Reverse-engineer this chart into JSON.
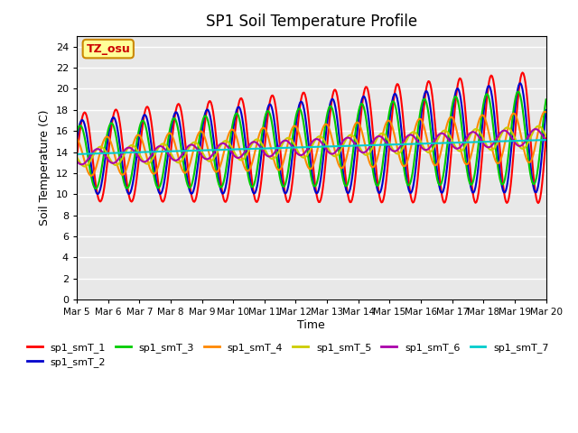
{
  "title": "SP1 Soil Temperature Profile",
  "xlabel": "Time",
  "ylabel": "Soil Temperature (C)",
  "ylim": [
    0,
    25
  ],
  "yticks": [
    0,
    2,
    4,
    6,
    8,
    10,
    12,
    14,
    16,
    18,
    20,
    22,
    24
  ],
  "x_tick_positions": [
    0,
    1,
    2,
    3,
    4,
    5,
    6,
    7,
    8,
    9,
    10,
    11,
    12,
    13,
    14,
    15
  ],
  "x_labels": [
    "Mar 5",
    "Mar 6",
    "Mar 7",
    "Mar 8",
    "Mar 9",
    "Mar 10",
    "Mar 11",
    "Mar 12",
    "Mar 13",
    "Mar 14",
    "Mar 15",
    "Mar 16",
    "Mar 17",
    "Mar 18",
    "Mar 19",
    "Mar 20"
  ],
  "annotation": "TZ_osu",
  "annotation_color": "#cc0000",
  "annotation_bg": "#ffff99",
  "annotation_border": "#cc8800",
  "series_colors": [
    "#ff0000",
    "#0000cc",
    "#00cc00",
    "#ff8800",
    "#cccc00",
    "#aa00aa",
    "#00cccc"
  ],
  "series_labels": [
    "sp1_smT_1",
    "sp1_smT_2",
    "sp1_smT_3",
    "sp1_smT_4",
    "sp1_smT_5",
    "sp1_smT_6",
    "sp1_smT_7"
  ],
  "bg_color": "#e8e8e8",
  "n_points": 480,
  "days": 15
}
